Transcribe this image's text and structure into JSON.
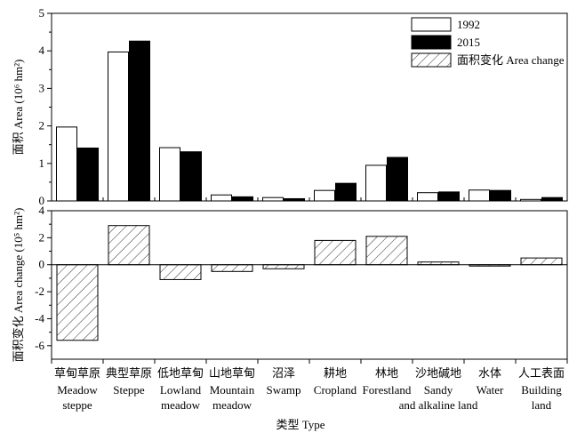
{
  "chart_data": [
    {
      "type": "bar",
      "ylabel": "面积 Area (10⁶ hm²)",
      "ylim": [
        0,
        5
      ],
      "yticks": [
        0,
        1,
        2,
        3,
        4,
        5
      ],
      "legend_position": "top-right",
      "series": [
        {
          "name": "1992",
          "color": "#ffffff",
          "values": [
            1.97,
            3.97,
            1.42,
            0.16,
            0.09,
            0.28,
            0.95,
            0.22,
            0.29,
            0.04
          ]
        },
        {
          "name": "2015",
          "color": "#000000",
          "values": [
            1.41,
            4.26,
            1.31,
            0.11,
            0.06,
            0.47,
            1.16,
            0.24,
            0.28,
            0.09
          ]
        }
      ]
    },
    {
      "type": "bar",
      "ylabel": "面积变化 Area change (10⁵ hm²)",
      "ylim": [
        -7,
        4
      ],
      "yticks": [
        -6,
        -4,
        -2,
        0,
        2,
        4
      ],
      "series": [
        {
          "name": "面积变化 Area change",
          "pattern": "hatch",
          "values": [
            -5.6,
            2.9,
            -1.1,
            -0.5,
            -0.3,
            1.8,
            2.1,
            0.2,
            -0.1,
            0.5
          ]
        }
      ]
    }
  ],
  "categories": [
    {
      "cn": "草甸草原",
      "en": [
        "Meadow",
        "steppe"
      ]
    },
    {
      "cn": "典型草原",
      "en": [
        "Steppe"
      ]
    },
    {
      "cn": "低地草甸",
      "en": [
        "Lowland",
        "meadow"
      ]
    },
    {
      "cn": "山地草甸",
      "en": [
        "Mountain",
        "meadow"
      ]
    },
    {
      "cn": "沼泽",
      "en": [
        "Swamp"
      ]
    },
    {
      "cn": "耕地",
      "en": [
        "Cropland"
      ]
    },
    {
      "cn": "林地",
      "en": [
        "Forestland"
      ]
    },
    {
      "cn": "沙地碱地",
      "en": [
        "Sandy",
        "and alkaline land"
      ]
    },
    {
      "cn": "水体",
      "en": [
        "Water"
      ]
    },
    {
      "cn": "人工表面",
      "en": [
        "Building",
        "land"
      ]
    }
  ],
  "xlabel": "类型  Type"
}
